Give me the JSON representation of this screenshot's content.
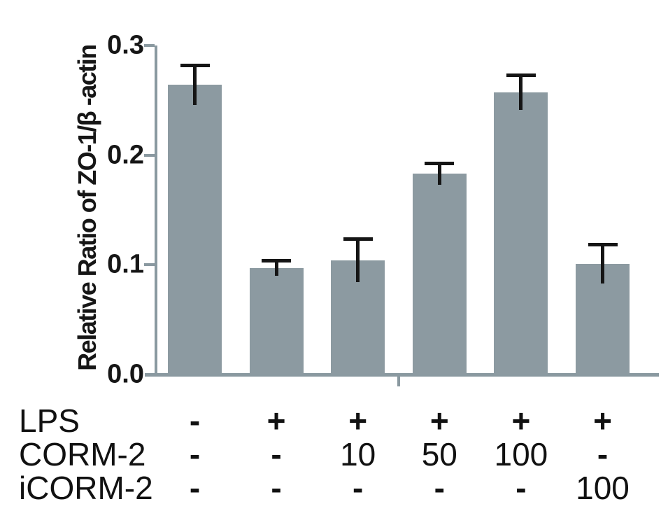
{
  "chart_data": {
    "type": "bar",
    "title": "",
    "ylabel": "Relative Ratio of ZO-1/β -actin",
    "xlabel": "",
    "ylim": [
      0.0,
      0.3
    ],
    "yticks": [
      0.0,
      0.1,
      0.2,
      0.3
    ],
    "ytick_labels": [
      "0.0",
      "0.1",
      "0.2",
      "0.3"
    ],
    "grid": false,
    "legend": "none",
    "categories": [
      "LPS-/CORM-2-/iCORM-2-",
      "LPS+/CORM-2-/iCORM-2-",
      "LPS+/CORM-2 10/iCORM-2-",
      "LPS+/CORM-2 50/iCORM-2-",
      "LPS+/CORM-2 100/iCORM-2-",
      "LPS+/CORM-2-/iCORM-2 100"
    ],
    "values": [
      0.264,
      0.097,
      0.104,
      0.183,
      0.257,
      0.101
    ],
    "errors": [
      0.018,
      0.007,
      0.02,
      0.01,
      0.016,
      0.018
    ],
    "colors": {
      "bar_fill": "#8C9AA1",
      "axis": "#8A99A0",
      "error_bar": "#151515",
      "text": "#111111"
    },
    "condition_table": {
      "rows": [
        {
          "label": "LPS",
          "values": [
            "-",
            "+",
            "+",
            "+",
            "+",
            "+"
          ]
        },
        {
          "label": "CORM-2",
          "values": [
            "-",
            "-",
            "10",
            "50",
            "100",
            "-"
          ]
        },
        {
          "label": "iCORM-2",
          "values": [
            "-",
            "-",
            "-",
            "-",
            "-",
            "100"
          ]
        }
      ]
    }
  }
}
